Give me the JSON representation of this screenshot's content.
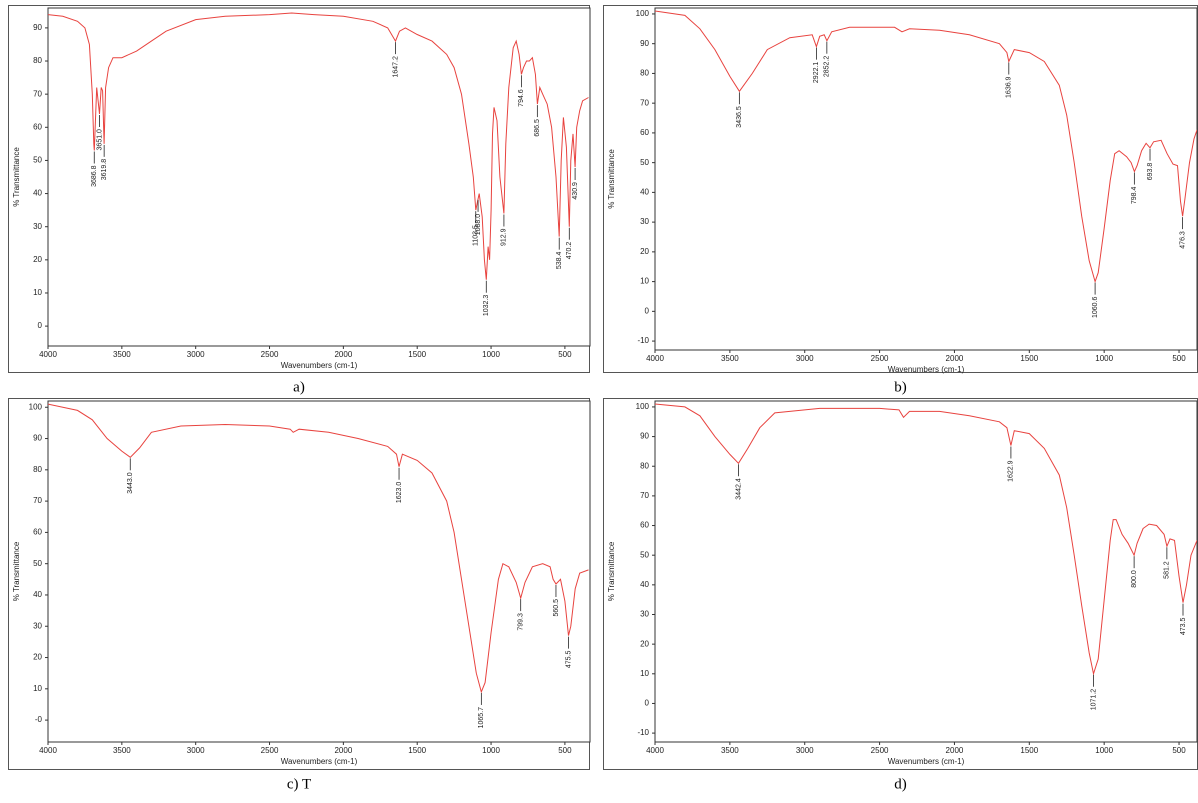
{
  "chart_data": [
    {
      "type": "line",
      "caption": "a)",
      "xlabel": "Wavenumbers (cm-1)",
      "ylabel": "% Transmittance",
      "color": "#e8433f",
      "xlim": [
        4000,
        330
      ],
      "xticks": [
        4000,
        3500,
        3000,
        2500,
        2000,
        1500,
        1000,
        500
      ],
      "ylim": [
        -6,
        96
      ],
      "yticks": [
        0,
        10,
        20,
        30,
        40,
        50,
        60,
        70,
        80,
        90
      ],
      "x": [
        4000,
        3900,
        3800,
        3750,
        3720,
        3700,
        3690,
        3686.8,
        3670,
        3651,
        3640,
        3630,
        3619.8,
        3610,
        3590,
        3560,
        3500,
        3400,
        3300,
        3200,
        3000,
        2800,
        2500,
        2350,
        2200,
        2000,
        1800,
        1700,
        1647.2,
        1620,
        1580,
        1500,
        1400,
        1300,
        1250,
        1200,
        1150,
        1120,
        1103.5,
        1090,
        1080,
        1060,
        1045,
        1032.3,
        1020,
        1010,
        1000,
        990,
        980,
        960,
        940,
        912.9,
        900,
        880,
        850,
        830,
        810,
        794.6,
        780,
        760,
        740,
        720,
        700,
        686.5,
        670,
        650,
        620,
        590,
        560,
        538.4,
        525,
        510,
        490,
        470.2,
        460,
        445,
        430.9,
        420,
        400,
        380,
        340
      ],
      "values": [
        94,
        93.5,
        92,
        90,
        85,
        70,
        55,
        53,
        72,
        64,
        72,
        71,
        55,
        72,
        78,
        81,
        81,
        83,
        86,
        89,
        92.5,
        93.5,
        94,
        94.5,
        94,
        93.5,
        92,
        90,
        86,
        89,
        90,
        88,
        86,
        82,
        78,
        70,
        55,
        45,
        35,
        38,
        40,
        33,
        20,
        14,
        24,
        20,
        35,
        58,
        66,
        62,
        45,
        34,
        55,
        72,
        84,
        86,
        82,
        76,
        78,
        80,
        80,
        81,
        76,
        67,
        72,
        70,
        67,
        60,
        45,
        27,
        50,
        63,
        54,
        30,
        50,
        58,
        48,
        60,
        65,
        68,
        69
      ],
      "peaks": [
        3686.8,
        {
          "value": 3651,
          "label": "3651.0"
        },
        3619.8,
        1647.2,
        1103.5,
        {
          "value": 1088,
          "label": "1088.0"
        },
        1032.3,
        912.9,
        794.6,
        686.5,
        538.4,
        470.2,
        430.9
      ]
    },
    {
      "type": "line",
      "caption": "b)",
      "xlabel": "Wavenumbers (cm-1)",
      "ylabel": "% Transmittance",
      "color": "#e8433f",
      "xlim": [
        4000,
        380
      ],
      "xticks": [
        4000,
        3500,
        3000,
        2500,
        2000,
        1500,
        1000,
        500
      ],
      "ylim": [
        -13,
        102
      ],
      "yticks": [
        -10,
        0,
        10,
        20,
        30,
        40,
        50,
        60,
        70,
        80,
        90,
        100
      ],
      "x": [
        4000,
        3800,
        3700,
        3600,
        3500,
        3436.5,
        3350,
        3250,
        3100,
        2950,
        2922.1,
        2900,
        2870,
        2852.2,
        2820,
        2700,
        2400,
        2350,
        2300,
        2100,
        1900,
        1700,
        1650,
        1636.9,
        1600,
        1500,
        1400,
        1300,
        1250,
        1200,
        1150,
        1100,
        1060.6,
        1040,
        1000,
        960,
        930,
        900,
        850,
        820,
        798.4,
        780,
        750,
        720,
        693.8,
        670,
        620,
        580,
        540,
        510,
        490,
        476.3,
        460,
        430,
        400,
        380
      ],
      "values": [
        101,
        99.5,
        95,
        88,
        79,
        74,
        80,
        88,
        92,
        93,
        89,
        92.5,
        93,
        91,
        94,
        95.5,
        95.5,
        94,
        95,
        94.5,
        93,
        90,
        87,
        84,
        88,
        87,
        84,
        76,
        66,
        50,
        32,
        17,
        10,
        13,
        28,
        44,
        53,
        54,
        52,
        50,
        47,
        49,
        54,
        56.5,
        55,
        57,
        57.5,
        53,
        49.5,
        49,
        37,
        32,
        38,
        50,
        58,
        61
      ],
      "peaks": [
        3436.5,
        2922.1,
        2852.2,
        1636.9,
        1060.6,
        798.4,
        693.8,
        476.3
      ]
    },
    {
      "type": "line",
      "caption": "c) T",
      "xlabel": "Wavenumbers (cm-1)",
      "ylabel": "% Transmittance",
      "color": "#e8433f",
      "xlim": [
        4000,
        330
      ],
      "xticks": [
        4000,
        3500,
        3000,
        2500,
        2000,
        1500,
        1000,
        500
      ],
      "ylim": [
        -7,
        102
      ],
      "yticks": [
        {
          "value": 0,
          "label": "-0"
        },
        10,
        20,
        30,
        40,
        50,
        60,
        70,
        80,
        90,
        100
      ],
      "x": [
        4000,
        3800,
        3700,
        3600,
        3500,
        3443,
        3380,
        3300,
        3100,
        2800,
        2500,
        2360,
        2340,
        2300,
        2100,
        1900,
        1700,
        1640,
        1623,
        1600,
        1500,
        1400,
        1300,
        1250,
        1200,
        1150,
        1100,
        1065.7,
        1040,
        1000,
        950,
        920,
        880,
        830,
        799.3,
        770,
        720,
        650,
        600,
        580,
        560.5,
        530,
        500,
        475.5,
        460,
        430,
        400,
        340
      ],
      "values": [
        101,
        99,
        96,
        90,
        86,
        84,
        87,
        92,
        94,
        94.5,
        94,
        93,
        92,
        93,
        92,
        90,
        87.5,
        85,
        81,
        85,
        83,
        79,
        70,
        60,
        45,
        30,
        15,
        9,
        12,
        28,
        45,
        50,
        49,
        44,
        39,
        44,
        49,
        50,
        49,
        45,
        43.5,
        45,
        38,
        27,
        30,
        42,
        47,
        48
      ],
      "peaks": [
        {
          "value": 3443,
          "label": "3443.0"
        },
        {
          "value": 1623,
          "label": "1623.0"
        },
        1065.7,
        799.3,
        560.5,
        475.5
      ]
    },
    {
      "type": "line",
      "caption": "d)",
      "xlabel": "Wavenumbers (cm-1)",
      "ylabel": "% Transmittance",
      "color": "#e8433f",
      "xlim": [
        4000,
        380
      ],
      "xticks": [
        4000,
        3500,
        3000,
        2500,
        2000,
        1500,
        1000,
        500
      ],
      "ylim": [
        -13,
        102
      ],
      "yticks": [
        -10,
        0,
        10,
        20,
        30,
        40,
        50,
        60,
        70,
        80,
        90,
        100
      ],
      "x": [
        4000,
        3800,
        3700,
        3600,
        3500,
        3442.4,
        3380,
        3300,
        3200,
        3000,
        2900,
        2500,
        2370,
        2340,
        2300,
        2100,
        1900,
        1700,
        1650,
        1622.9,
        1600,
        1500,
        1400,
        1300,
        1250,
        1200,
        1150,
        1100,
        1071.2,
        1040,
        1000,
        960,
        940,
        920,
        880,
        840,
        800,
        780,
        740,
        700,
        650,
        600,
        581.2,
        560,
        530,
        500,
        473.5,
        450,
        420,
        380
      ],
      "values": [
        101,
        100,
        97,
        90,
        84,
        81,
        86,
        93,
        98,
        99,
        99.5,
        99.5,
        99,
        96.5,
        98.5,
        98.5,
        97,
        95,
        93,
        87,
        92,
        91,
        86,
        77,
        66,
        50,
        33,
        17,
        10,
        15,
        35,
        55,
        62,
        62,
        57,
        54,
        50,
        54,
        59,
        60.5,
        60,
        57,
        53,
        55.5,
        55,
        43,
        34,
        40,
        50,
        55
      ],
      "peaks": [
        3442.4,
        1622.9,
        1071.2,
        {
          "value": 800,
          "label": "800.0"
        },
        581.2,
        473.5
      ]
    }
  ]
}
